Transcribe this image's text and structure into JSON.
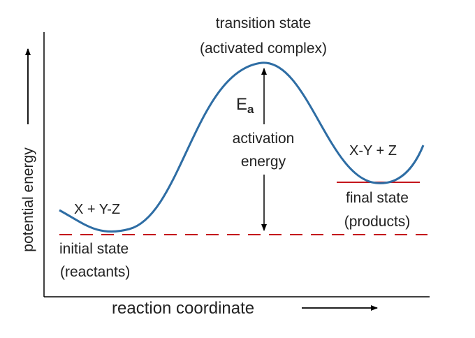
{
  "colors": {
    "curve": "#2e6da4",
    "reference_lines": "#c4161c",
    "axes": "#000000",
    "text": "#222222"
  },
  "axes": {
    "x_label": "reaction coordinate",
    "y_label": "potential energy"
  },
  "labels": {
    "transition_state_line1": "transition state",
    "transition_state_line2": "(activated complex)",
    "ea_main": "E",
    "ea_subscript": "a",
    "activation_line1": "activation",
    "activation_line2": "energy",
    "reactants_formula": "X + Y-Z",
    "products_formula": "X-Y + Z",
    "initial_state_line1": "initial state",
    "initial_state_line2": "(reactants)",
    "final_state_line1": "final state",
    "final_state_line2": "(products)"
  }
}
